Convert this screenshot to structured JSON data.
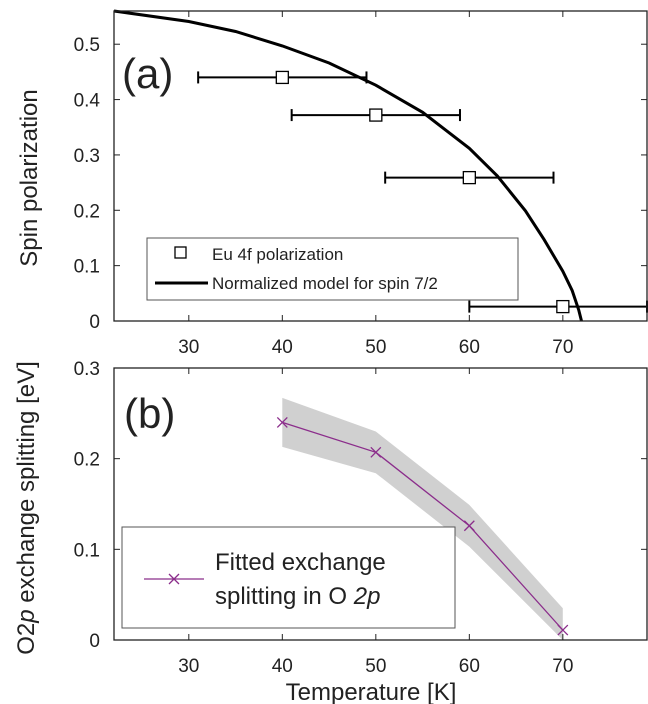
{
  "colors": {
    "axis": "#222222",
    "model_line": "#000000",
    "marker": "#000000",
    "fit_line": "#8b2d8b",
    "band": "#d0d0d0",
    "legend_border": "#555555"
  },
  "chart_data": [
    {
      "type": "scatter",
      "panel_label": "(a)",
      "xlabel": "",
      "ylabel": "Spin polarization",
      "xlim": [
        22,
        79
      ],
      "ylim": [
        0,
        0.56
      ],
      "xticks": [
        30,
        40,
        50,
        60,
        70
      ],
      "yticks": [
        0,
        0.1,
        0.2,
        0.3,
        0.4,
        0.5
      ],
      "ytick_labels": [
        "0",
        "0.1",
        "0.2",
        "0.3",
        "0.4",
        "0.5"
      ],
      "grid": false,
      "legend_position": "lower-left",
      "series": [
        {
          "name": "Eu 4f polarization",
          "kind": "points",
          "marker": "square",
          "x": [
            40,
            50,
            60,
            70
          ],
          "y": [
            0.44,
            0.372,
            0.259,
            0.026
          ],
          "xerr_low": [
            9,
            9,
            9,
            10
          ],
          "xerr_high": [
            9,
            9,
            9,
            9
          ]
        },
        {
          "name": "Normalized model for spin 7/2",
          "kind": "line",
          "Tc": 72,
          "x": [
            22,
            30,
            35,
            40,
            45,
            50,
            55,
            60,
            63,
            66,
            68,
            70,
            71,
            71.7,
            72
          ],
          "y": [
            0.56,
            0.541,
            0.523,
            0.497,
            0.466,
            0.426,
            0.377,
            0.312,
            0.262,
            0.199,
            0.147,
            0.09,
            0.055,
            0.02,
            0
          ]
        }
      ]
    },
    {
      "type": "line",
      "panel_label": "(b)",
      "xlabel": "Temperature [K]",
      "ylabel_pre": "O2",
      "ylabel_em": "p",
      "ylabel_post": " exchange splitting [eV]",
      "xlim": [
        22,
        79
      ],
      "ylim": [
        0,
        0.3
      ],
      "xticks": [
        30,
        40,
        50,
        60,
        70
      ],
      "yticks": [
        0,
        0.1,
        0.2,
        0.3
      ],
      "ytick_labels": [
        "0",
        "0.1",
        "0.2",
        "0.3"
      ],
      "grid": false,
      "legend_position": "lower-left",
      "series": [
        {
          "name_line1": "Fitted exchange",
          "name_line2_pre": "splitting in O ",
          "name_line2_em": "2p",
          "marker": "x",
          "x": [
            40,
            50,
            60,
            70
          ],
          "y": [
            0.24,
            0.207,
            0.126,
            0.011
          ],
          "band_low": [
            0.213,
            0.184,
            0.103,
            0
          ],
          "band_high": [
            0.267,
            0.23,
            0.149,
            0.035
          ]
        }
      ]
    }
  ]
}
